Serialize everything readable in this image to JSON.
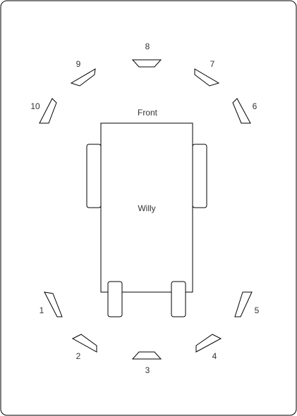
{
  "diagram": {
    "robot_label": "Willy",
    "front_label": "Front",
    "sensors": [
      {
        "id": "1",
        "label": "1"
      },
      {
        "id": "2",
        "label": "2"
      },
      {
        "id": "3",
        "label": "3"
      },
      {
        "id": "4",
        "label": "4"
      },
      {
        "id": "5",
        "label": "5"
      },
      {
        "id": "6",
        "label": "6"
      },
      {
        "id": "7",
        "label": "7"
      },
      {
        "id": "8",
        "label": "8"
      },
      {
        "id": "9",
        "label": "9"
      },
      {
        "id": "10",
        "label": "10"
      }
    ]
  },
  "colors": {
    "stroke": "#000000",
    "text": "#333333",
    "background": "#ffffff"
  }
}
